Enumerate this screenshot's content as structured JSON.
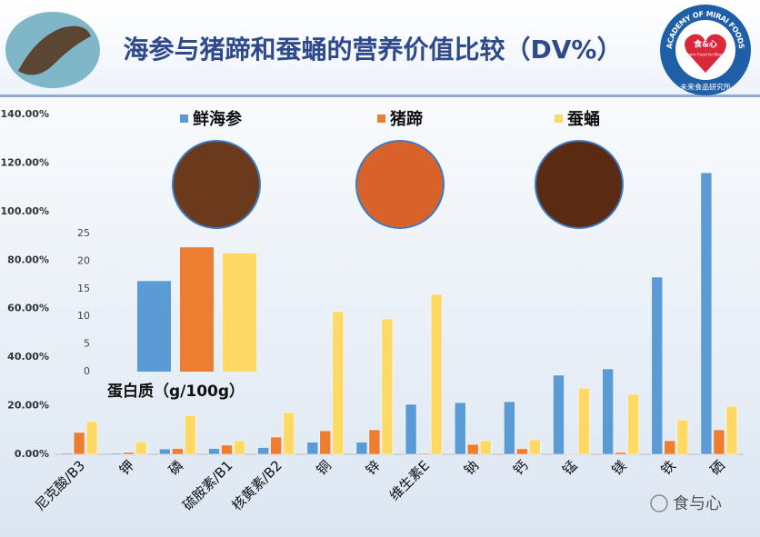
{
  "logo": {
    "ring": "ACADEMY OF MIRAI FOODS",
    "center": "食&心",
    "motto": "From Food to Mood",
    "bottom": "未来食品研究所"
  },
  "watermark": "食与心",
  "chart_data": [
    {
      "type": "bar",
      "title": "海参与猪蹄和蚕蛹的营养价值比较（DV%）",
      "categories": [
        "尼克酸/B3",
        "钾",
        "磷",
        "硫胺素/B1",
        "核黄素/B2",
        "铜",
        "锌",
        "维生素E",
        "钠",
        "钙",
        "锰",
        "镁",
        "铁",
        "硒"
      ],
      "series": [
        {
          "name": "鲜海参",
          "color": "#5b9bd5",
          "values": [
            0.5,
            0.5,
            2.2,
            2.4,
            2.8,
            5.0,
            5.0,
            20.6,
            21.3,
            21.7,
            32.6,
            35.2,
            73,
            116
          ]
        },
        {
          "name": "猪蹄",
          "color": "#ed7d31",
          "values": [
            9,
            0.8,
            2.4,
            3.8,
            7.1,
            9.7,
            10.1,
            0.4,
            4.1,
            2.3,
            0.3,
            0.8,
            5.6,
            10.1
          ]
        },
        {
          "name": "蚕蛹",
          "color": "#ffd966",
          "values": [
            13.5,
            5.2,
            16.1,
            5.6,
            17.2,
            58.8,
            55.8,
            65.9,
            5.6,
            6.0,
            27.3,
            24.7,
            14.2,
            19.8
          ]
        }
      ],
      "ylim": [
        0,
        140
      ],
      "yticks": [
        {
          "value": 0,
          "label": "0.00%"
        },
        {
          "value": 20,
          "label": "20.00%"
        },
        {
          "value": 40,
          "label": "40.00%"
        },
        {
          "value": 60,
          "label": "60.00%"
        },
        {
          "value": 80,
          "label": "80.00%"
        },
        {
          "value": 100,
          "label": "100.00%"
        },
        {
          "value": 120,
          "label": "120.00%"
        },
        {
          "value": 140,
          "label": "140.00%"
        }
      ],
      "grid": false,
      "legend": "top"
    },
    {
      "type": "bar",
      "title": "蛋白质（g/100g）",
      "categories": [
        null,
        null,
        null
      ],
      "values": [
        16.4,
        22.5,
        21.4
      ],
      "colors": [
        "#5b9bd5",
        "#ed7d31",
        "#ffd966"
      ],
      "ylim": [
        0,
        25
      ],
      "yticks": [
        0,
        5,
        10,
        15,
        20,
        25
      ]
    }
  ]
}
